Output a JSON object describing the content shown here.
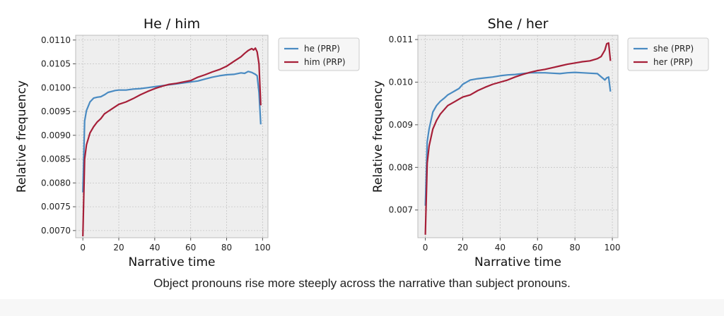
{
  "caption": "Object pronouns rise more steeply across the narrative than subject pronouns.",
  "chart_data": [
    {
      "type": "line",
      "title": "He / him",
      "xlabel": "Narrative time",
      "ylabel": "Relative frequency",
      "xlim": [
        -4,
        103
      ],
      "ylim": [
        0.00685,
        0.0111
      ],
      "xticks": [
        0,
        20,
        40,
        60,
        80,
        100
      ],
      "xtick_labels": [
        "0",
        "20",
        "40",
        "60",
        "80",
        "100"
      ],
      "yticks": [
        0.007,
        0.0075,
        0.008,
        0.0085,
        0.009,
        0.0095,
        0.01,
        0.0105,
        0.011
      ],
      "ytick_labels": [
        "0.0070",
        "0.0075",
        "0.0080",
        "0.0085",
        "0.0090",
        "0.0095",
        "0.0100",
        "0.0105",
        "0.0110"
      ],
      "grid": true,
      "legend_position": "outside-right-top",
      "series": [
        {
          "name": "he (PRP)",
          "color": "#4a8bc2",
          "x": [
            0,
            1,
            2,
            4,
            6,
            8,
            10,
            12,
            14,
            16,
            18,
            20,
            24,
            28,
            32,
            36,
            40,
            44,
            48,
            52,
            56,
            60,
            64,
            68,
            72,
            76,
            80,
            84,
            88,
            90,
            92,
            94,
            96,
            97,
            98,
            99
          ],
          "y": [
            0.0078,
            0.0093,
            0.00952,
            0.0097,
            0.00978,
            0.0098,
            0.00981,
            0.00985,
            0.0099,
            0.00992,
            0.00994,
            0.00995,
            0.00995,
            0.00997,
            0.00998,
            0.01,
            0.01002,
            0.01004,
            0.01006,
            0.01008,
            0.0101,
            0.01012,
            0.01014,
            0.01018,
            0.01022,
            0.01025,
            0.01027,
            0.01028,
            0.01031,
            0.0103,
            0.01034,
            0.01032,
            0.01028,
            0.01025,
            0.0099,
            0.00923
          ]
        },
        {
          "name": "him (PRP)",
          "color": "#a61f38",
          "x": [
            0,
            1,
            2,
            4,
            6,
            8,
            10,
            12,
            14,
            16,
            18,
            20,
            24,
            28,
            32,
            36,
            40,
            44,
            48,
            52,
            56,
            60,
            64,
            68,
            72,
            76,
            80,
            84,
            88,
            90,
            92,
            94,
            95,
            96,
            97,
            98,
            99
          ],
          "y": [
            0.00688,
            0.0085,
            0.0088,
            0.00905,
            0.00918,
            0.00928,
            0.00935,
            0.00945,
            0.0095,
            0.00955,
            0.0096,
            0.00965,
            0.0097,
            0.00977,
            0.00985,
            0.00992,
            0.00998,
            0.01003,
            0.01007,
            0.01009,
            0.01012,
            0.01015,
            0.01022,
            0.01027,
            0.01033,
            0.01038,
            0.01045,
            0.01055,
            0.01065,
            0.01072,
            0.01078,
            0.01082,
            0.01079,
            0.01083,
            0.01075,
            0.0105,
            0.00963
          ]
        }
      ]
    },
    {
      "type": "line",
      "title": "She / her",
      "xlabel": "Narrative time",
      "ylabel": "Relative frequency",
      "xlim": [
        -4,
        103
      ],
      "ylim": [
        0.00635,
        0.0111
      ],
      "xticks": [
        0,
        20,
        40,
        60,
        80,
        100
      ],
      "xtick_labels": [
        "0",
        "20",
        "40",
        "60",
        "80",
        "100"
      ],
      "yticks": [
        0.007,
        0.008,
        0.009,
        0.01,
        0.011
      ],
      "ytick_labels": [
        "0.007",
        "0.008",
        "0.009",
        "0.010",
        "0.011"
      ],
      "grid": true,
      "legend_position": "outside-right-top",
      "series": [
        {
          "name": "she (PRP)",
          "color": "#4a8bc2",
          "x": [
            0,
            1,
            2,
            4,
            6,
            8,
            10,
            12,
            14,
            16,
            18,
            20,
            24,
            28,
            32,
            36,
            40,
            44,
            48,
            52,
            56,
            60,
            64,
            68,
            72,
            76,
            80,
            84,
            88,
            92,
            96,
            97,
            98,
            99
          ],
          "y": [
            0.0071,
            0.0086,
            0.0089,
            0.0093,
            0.00945,
            0.00955,
            0.00962,
            0.0097,
            0.00975,
            0.0098,
            0.00985,
            0.00995,
            0.01005,
            0.01008,
            0.0101,
            0.01012,
            0.01015,
            0.01017,
            0.01018,
            0.0102,
            0.01022,
            0.01022,
            0.01022,
            0.01021,
            0.0102,
            0.01022,
            0.01023,
            0.01022,
            0.01021,
            0.0102,
            0.01005,
            0.0101,
            0.01012,
            0.00978
          ]
        },
        {
          "name": "her (PRP)",
          "color": "#a61f38",
          "x": [
            0,
            1,
            2,
            4,
            6,
            8,
            10,
            12,
            14,
            16,
            18,
            20,
            24,
            28,
            32,
            36,
            40,
            44,
            48,
            52,
            56,
            60,
            64,
            68,
            72,
            76,
            80,
            84,
            88,
            92,
            94,
            96,
            97,
            98,
            99
          ],
          "y": [
            0.00642,
            0.0081,
            0.0085,
            0.0089,
            0.0091,
            0.00925,
            0.00935,
            0.00945,
            0.0095,
            0.00955,
            0.0096,
            0.00965,
            0.0097,
            0.0098,
            0.00988,
            0.00995,
            0.01,
            0.01005,
            0.01012,
            0.01018,
            0.01023,
            0.01027,
            0.0103,
            0.01034,
            0.01038,
            0.01042,
            0.01045,
            0.01048,
            0.0105,
            0.01055,
            0.0106,
            0.01075,
            0.0109,
            0.01092,
            0.0105
          ]
        }
      ]
    }
  ]
}
